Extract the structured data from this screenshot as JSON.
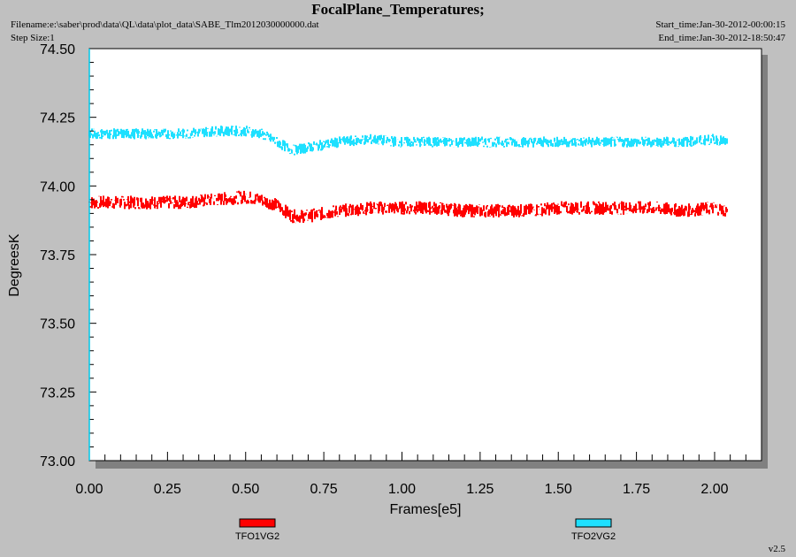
{
  "header": {
    "title": "FocalPlane_Temperatures;",
    "filename": "Filename:e:\\saber\\prod\\data\\QL\\data\\plot_data\\SABE_Tlm2012030000000.dat",
    "step_size": "Step Size:1",
    "start_time": "Start_time:Jan-30-2012-00:00:15",
    "end_time": "End_time:Jan-30-2012-18:50:47"
  },
  "footer": {
    "version": "v2.5"
  },
  "chart_data": {
    "type": "line",
    "title": "FocalPlane_Temperatures;",
    "xlabel": "Frames[e5]",
    "ylabel": "DegreesK",
    "xlim": [
      0,
      2.15
    ],
    "ylim": [
      73.0,
      74.5
    ],
    "x_ticks": [
      "0.00",
      "0.25",
      "0.50",
      "0.75",
      "1.00",
      "1.25",
      "1.50",
      "1.75",
      "2.00"
    ],
    "y_ticks": [
      "73.00",
      "73.25",
      "73.50",
      "73.75",
      "74.00",
      "74.25",
      "74.50"
    ],
    "grid": false,
    "legend_position": "bottom",
    "series": [
      {
        "name": "TFO1VG2",
        "color": "#ff0000",
        "x": [
          0.0,
          0.1,
          0.2,
          0.3,
          0.4,
          0.5,
          0.55,
          0.6,
          0.65,
          0.7,
          0.8,
          0.9,
          1.0,
          1.1,
          1.2,
          1.3,
          1.4,
          1.5,
          1.6,
          1.7,
          1.8,
          1.9,
          2.0,
          2.04
        ],
        "values": [
          73.94,
          73.94,
          73.94,
          73.94,
          73.95,
          73.96,
          73.95,
          73.93,
          73.89,
          73.89,
          73.91,
          73.92,
          73.92,
          73.92,
          73.91,
          73.91,
          73.91,
          73.92,
          73.92,
          73.92,
          73.92,
          73.91,
          73.92,
          73.91
        ],
        "spread": 0.025
      },
      {
        "name": "TFO2VG2",
        "color": "#1ee0ff",
        "x": [
          0.0,
          0.1,
          0.2,
          0.3,
          0.4,
          0.5,
          0.55,
          0.6,
          0.65,
          0.7,
          0.8,
          0.9,
          1.0,
          1.1,
          1.2,
          1.3,
          1.4,
          1.5,
          1.6,
          1.7,
          1.8,
          1.9,
          2.0,
          2.04
        ],
        "values": [
          74.19,
          74.19,
          74.19,
          74.19,
          74.2,
          74.2,
          74.19,
          74.16,
          74.13,
          74.14,
          74.16,
          74.17,
          74.16,
          74.16,
          74.16,
          74.16,
          74.16,
          74.16,
          74.16,
          74.16,
          74.16,
          74.16,
          74.17,
          74.16
        ],
        "spread": 0.02
      }
    ]
  }
}
